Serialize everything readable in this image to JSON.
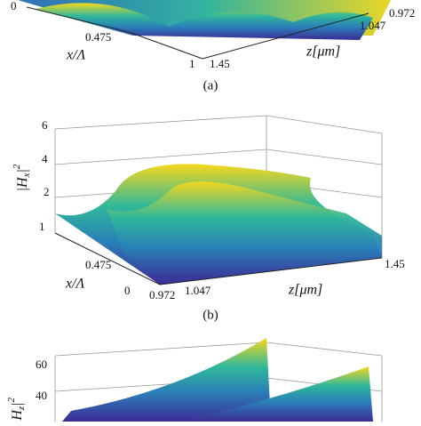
{
  "panels": [
    {
      "caption": "(a)",
      "y_ticks": [
        "0"
      ],
      "x_label": "x/Λ",
      "x_ticks": [
        "0.475",
        "1"
      ],
      "z_label": "z[μm]",
      "z_ticks": [
        "1.45",
        "1.047",
        "0.972"
      ]
    },
    {
      "caption": "(b)",
      "y_ticks": [
        "6",
        "4",
        "2"
      ],
      "y_label": {
        "open": "|H",
        "sub": "x",
        "close": "|",
        "sup": "2"
      },
      "x_label": "x/Λ",
      "x_ticks": [
        "1",
        "0.475",
        "0"
      ],
      "z_label": "z[μm]",
      "z_ticks": [
        "0.972",
        "1.047",
        "1.45"
      ]
    },
    {
      "y_ticks": [
        "60",
        "40"
      ],
      "y_label": {
        "open": "|H",
        "sub": "z",
        "close": "|",
        "sup": "2"
      }
    }
  ]
}
